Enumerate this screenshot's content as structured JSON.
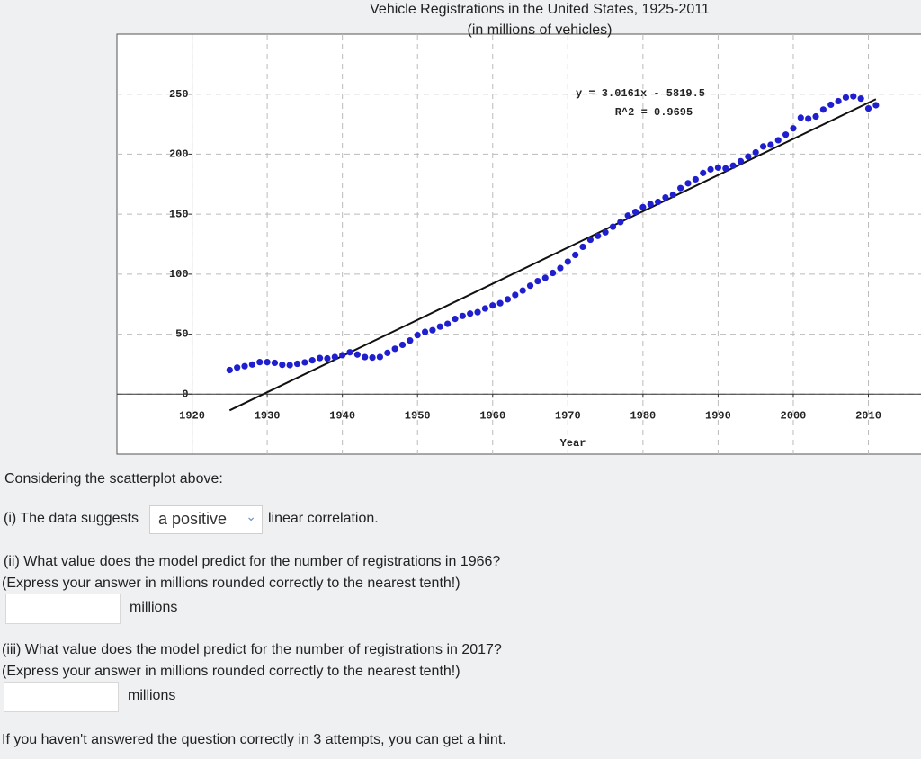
{
  "chart_data": {
    "type": "scatter",
    "title": "Vehicle Registrations in the United States, 1925-2011",
    "subtitle": "(in millions of vehicles)",
    "x_label": "Year",
    "x": [
      1925,
      1926,
      1927,
      1928,
      1929,
      1930,
      1931,
      1932,
      1933,
      1934,
      1935,
      1936,
      1937,
      1938,
      1939,
      1940,
      1941,
      1942,
      1943,
      1944,
      1945,
      1946,
      1947,
      1948,
      1949,
      1950,
      1951,
      1952,
      1953,
      1954,
      1955,
      1956,
      1957,
      1958,
      1959,
      1960,
      1961,
      1962,
      1963,
      1964,
      1965,
      1966,
      1967,
      1968,
      1969,
      1970,
      1971,
      1972,
      1973,
      1974,
      1975,
      1976,
      1977,
      1978,
      1979,
      1980,
      1981,
      1982,
      1983,
      1984,
      1985,
      1986,
      1987,
      1988,
      1989,
      1990,
      1991,
      1992,
      1993,
      1994,
      1995,
      1996,
      1997,
      1998,
      1999,
      2000,
      2001,
      2002,
      2003,
      2004,
      2005,
      2006,
      2007,
      2008,
      2009,
      2010,
      2011
    ],
    "values": [
      20.1,
      22.2,
      23.3,
      24.7,
      26.7,
      26.7,
      26.1,
      24.4,
      24.2,
      25.3,
      26.5,
      28.2,
      30.1,
      29.8,
      31.0,
      32.5,
      34.9,
      33.0,
      30.9,
      30.5,
      31.0,
      34.4,
      37.8,
      41.1,
      44.7,
      49.2,
      51.9,
      53.3,
      56.3,
      58.6,
      62.7,
      65.2,
      67.1,
      68.3,
      71.4,
      73.9,
      75.8,
      79.0,
      82.7,
      86.3,
      90.4,
      94.2,
      96.9,
      101.0,
      105.1,
      110.4,
      116.0,
      122.8,
      128.7,
      131.9,
      134.9,
      139.5,
      143.4,
      148.8,
      151.9,
      155.8,
      158.3,
      160.2,
      163.9,
      166.2,
      171.7,
      175.7,
      179.0,
      184.3,
      187.3,
      188.8,
      188.1,
      190.4,
      194.1,
      198.0,
      201.5,
      206.4,
      207.8,
      211.6,
      216.3,
      221.5,
      230.4,
      229.6,
      231.4,
      237.2,
      241.2,
      244.2,
      247.3,
      248.2,
      246.3,
      238.1,
      240.8
    ],
    "color": "#1f1fcf",
    "trendline": {
      "slope": 3.0161,
      "intercept": -5819.5,
      "color": "#111111"
    },
    "annotations": [
      "y = 3.0161x - 5819.5",
      "R^2 = 0.9695"
    ],
    "xlim": [
      1910,
      2017
    ],
    "ylim": [
      -50,
      300
    ],
    "xticks": [
      1920,
      1930,
      1940,
      1950,
      1960,
      1970,
      1980,
      1990,
      2000,
      2010
    ],
    "yticks": [
      0,
      50,
      100,
      150,
      200,
      250
    ],
    "grid": true
  },
  "questions": {
    "intro": "Considering the scatterplot above:",
    "q1": {
      "before": "(i) The data suggests",
      "selected": "a positive",
      "after": "linear correlation."
    },
    "q2": {
      "lines": [
        "(ii) What value does the model predict for the number of registrations in 1966?",
        "(Express your answer in millions rounded correctly to the nearest tenth!)"
      ],
      "unit": "millions"
    },
    "q3": {
      "lines": [
        "(iii) What value does the model predict for the number of registrations in 2017?",
        "(Express your answer in millions rounded correctly to the nearest tenth!)"
      ],
      "unit": "millions"
    },
    "footer": "If you haven't answered the question correctly in 3 attempts, you can get a hint."
  }
}
